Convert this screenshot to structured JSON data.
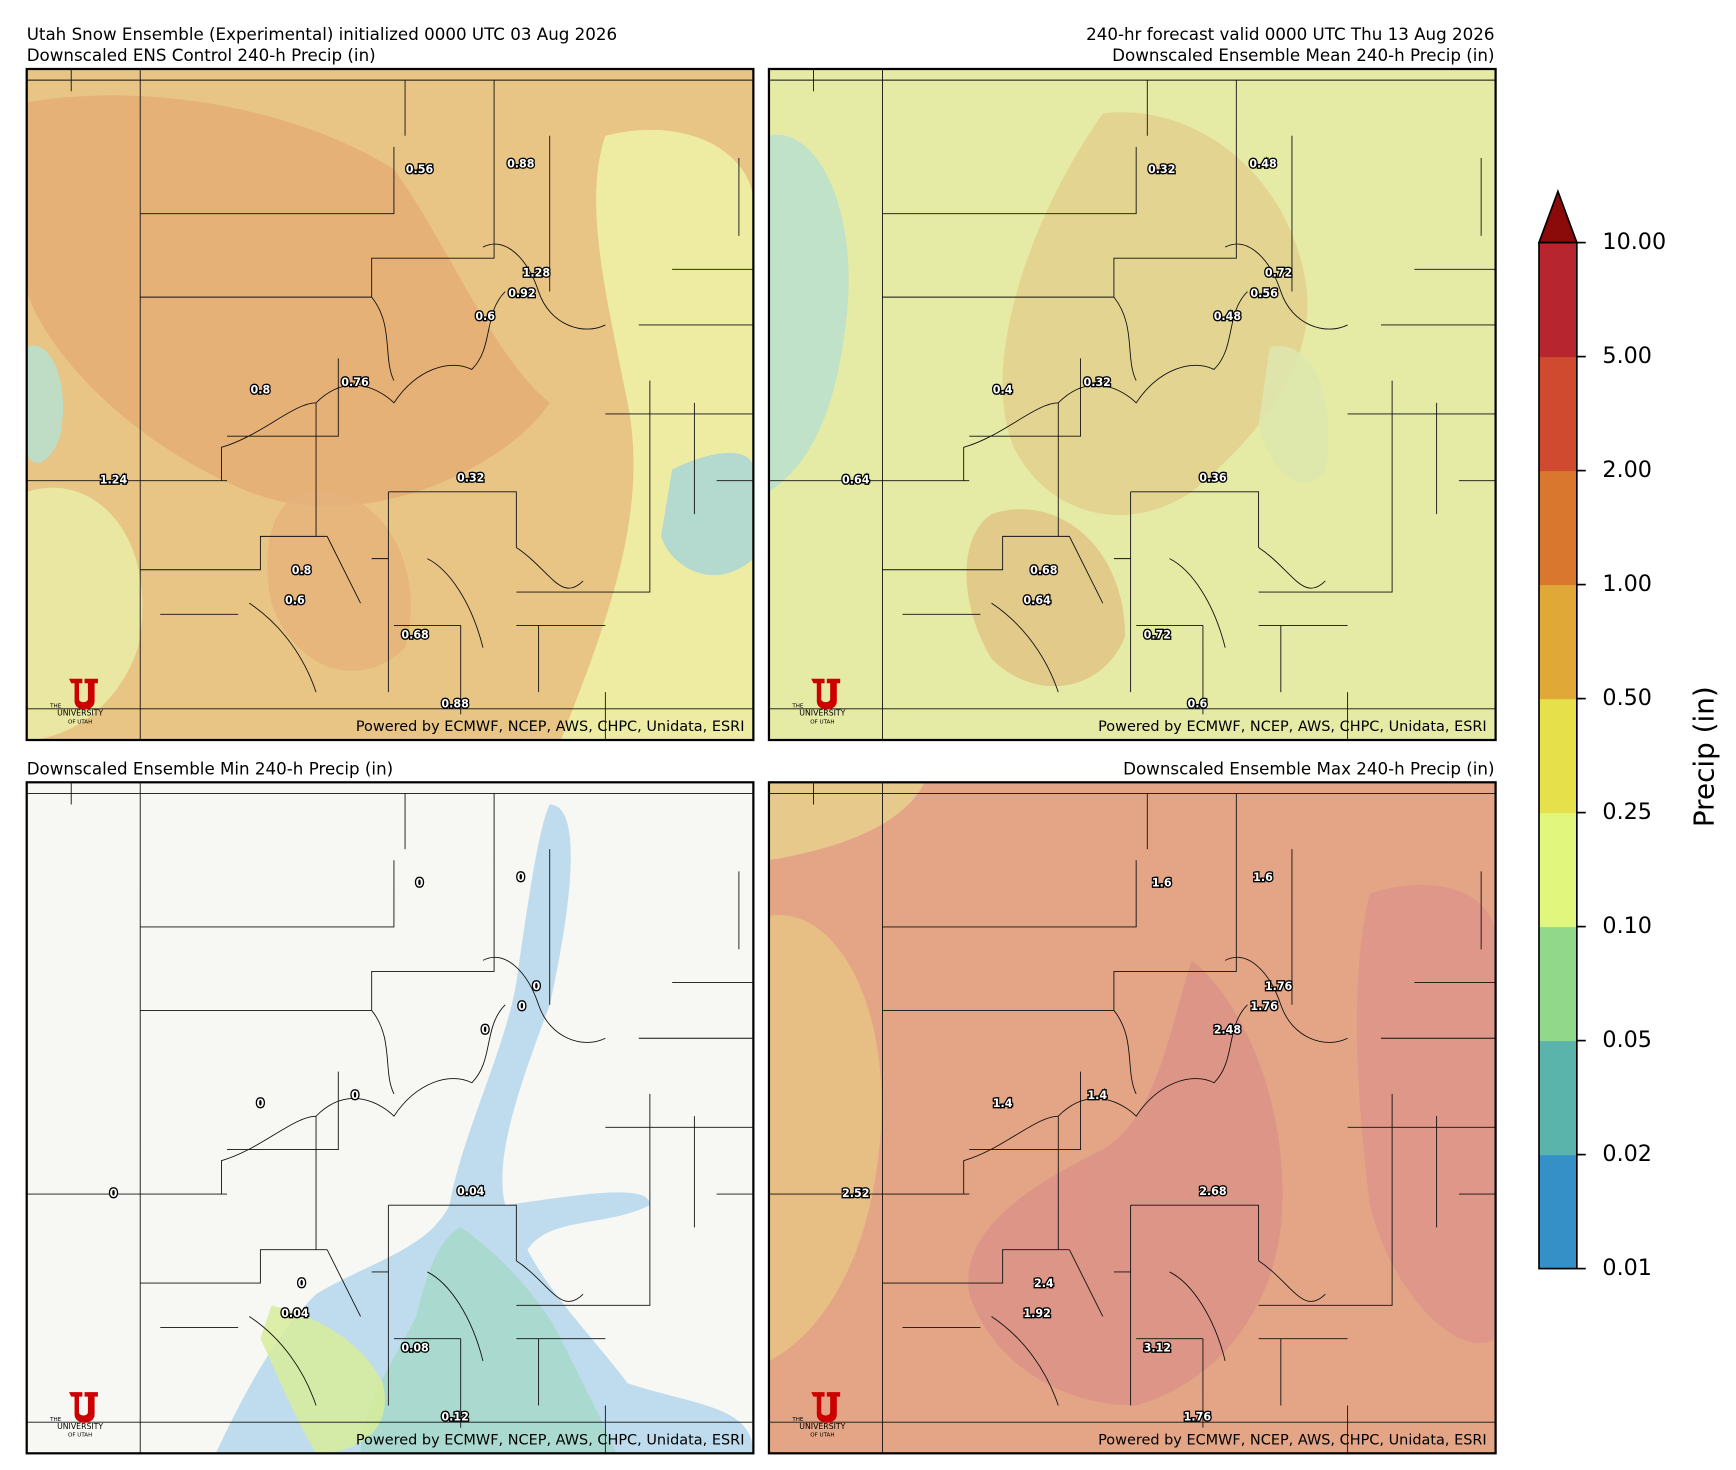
{
  "header": {
    "title": "Utah Snow Ensemble (Experimental) initialized 0000 UTC 03 Aug 2026",
    "valid": "240-hr forecast valid 0000 UTC Thu 13 Aug 2026"
  },
  "panels": [
    {
      "title": "Downscaled ENS Control 240-h Precip (in)",
      "labels": [
        "0.56",
        "0.88",
        "1.28",
        "0.92",
        "0.6",
        "0.8",
        "0.76",
        "1.24",
        "0.32",
        "0.8",
        "0.6",
        "0.68",
        "0.88"
      ]
    },
    {
      "title": "Downscaled Ensemble Mean 240-h Precip (in)",
      "labels": [
        "0.32",
        "0.48",
        "0.72",
        "0.56",
        "0.48",
        "0.4",
        "0.32",
        "0.64",
        "0.36",
        "0.68",
        "0.64",
        "0.72",
        "0.6"
      ]
    },
    {
      "title": "Downscaled Ensemble Min 240-h Precip (in)",
      "labels": [
        "0",
        "0",
        "0",
        "0",
        "0",
        "0",
        "0",
        "0",
        "0.04",
        "0",
        "0.04",
        "0.08",
        "0.12"
      ]
    },
    {
      "title": "Downscaled Ensemble Max 240-h Precip (in)",
      "labels": [
        "1.6",
        "1.6",
        "1.76",
        "1.76",
        "2.48",
        "1.4",
        "1.4",
        "2.52",
        "2.68",
        "2.4",
        "1.92",
        "3.12",
        "1.76"
      ]
    }
  ],
  "credit": "Powered by ECMWF, NCEP, AWS, CHPC, Unidata, ESRI",
  "logo": {
    "letter": "U",
    "line1": "THE",
    "line2": "UNIVERSITY",
    "line3": "OF UTAH"
  },
  "colorbar": {
    "label": "Precip (in)",
    "ticks": [
      "0.01",
      "0.02",
      "0.05",
      "0.10",
      "0.25",
      "0.50",
      "1.00",
      "2.00",
      "5.00",
      "10.00"
    ],
    "colors": [
      "#3690c8",
      "#5ab4ac",
      "#92d88a",
      "#e1f67c",
      "#e6e04a",
      "#e0a836",
      "#d9772f",
      "#cf4a2e",
      "#b7262f"
    ],
    "extend_color": "#8b0a0a"
  }
}
